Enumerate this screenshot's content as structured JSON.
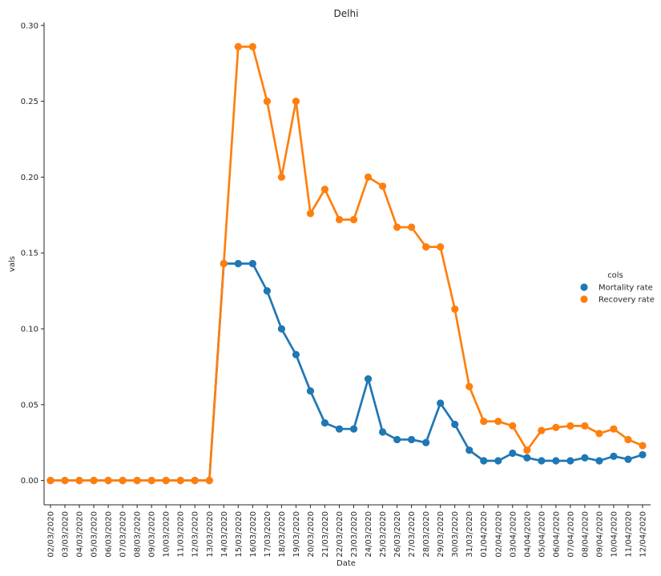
{
  "chart_data": {
    "type": "line",
    "title": "Delhi",
    "xlabel": "Date",
    "ylabel": "vals",
    "ylim": [
      -0.016,
      0.302
    ],
    "yticks": [
      0.0,
      0.05,
      0.1,
      0.15,
      0.2,
      0.25,
      0.3
    ],
    "ytick_labels": [
      "0.00",
      "0.05",
      "0.10",
      "0.15",
      "0.20",
      "0.25",
      "0.30"
    ],
    "grid": false,
    "legend": {
      "title": "cols",
      "placement": "center-right"
    },
    "categories": [
      "02/03/2020",
      "03/03/2020",
      "04/03/2020",
      "05/03/2020",
      "06/03/2020",
      "07/03/2020",
      "08/03/2020",
      "09/03/2020",
      "10/03/2020",
      "11/03/2020",
      "12/03/2020",
      "13/03/2020",
      "14/03/2020",
      "15/03/2020",
      "16/03/2020",
      "17/03/2020",
      "18/03/2020",
      "19/03/2020",
      "20/03/2020",
      "21/03/2020",
      "22/03/2020",
      "23/03/2020",
      "24/03/2020",
      "25/03/2020",
      "26/03/2020",
      "27/03/2020",
      "28/03/2020",
      "29/03/2020",
      "30/03/2020",
      "31/03/2020",
      "01/04/2020",
      "02/04/2020",
      "03/04/2020",
      "04/04/2020",
      "05/04/2020",
      "06/04/2020",
      "07/04/2020",
      "08/04/2020",
      "09/04/2020",
      "10/04/2020",
      "11/04/2020",
      "12/04/2020"
    ],
    "series": [
      {
        "name": "Mortality rate",
        "color": "#1f77b4",
        "values": [
          0,
          0,
          0,
          0,
          0,
          0,
          0,
          0,
          0,
          0,
          0,
          0,
          0.143,
          0.143,
          0.143,
          0.125,
          0.1,
          0.083,
          0.059,
          0.038,
          0.034,
          0.034,
          0.067,
          0.032,
          0.027,
          0.027,
          0.025,
          0.051,
          0.037,
          0.02,
          0.013,
          0.013,
          0.018,
          0.015,
          0.013,
          0.013,
          0.013,
          0.015,
          0.013,
          0.016,
          0.014,
          0.017
        ]
      },
      {
        "name": "Recovery rate",
        "color": "#ff7f0e",
        "values": [
          0,
          0,
          0,
          0,
          0,
          0,
          0,
          0,
          0,
          0,
          0,
          0,
          0.143,
          0.286,
          0.286,
          0.25,
          0.2,
          0.25,
          0.176,
          0.192,
          0.172,
          0.172,
          0.2,
          0.194,
          0.167,
          0.167,
          0.154,
          0.154,
          0.113,
          0.062,
          0.039,
          0.039,
          0.036,
          0.02,
          0.033,
          0.035,
          0.036,
          0.036,
          0.031,
          0.034,
          0.027,
          0.023
        ]
      }
    ]
  }
}
